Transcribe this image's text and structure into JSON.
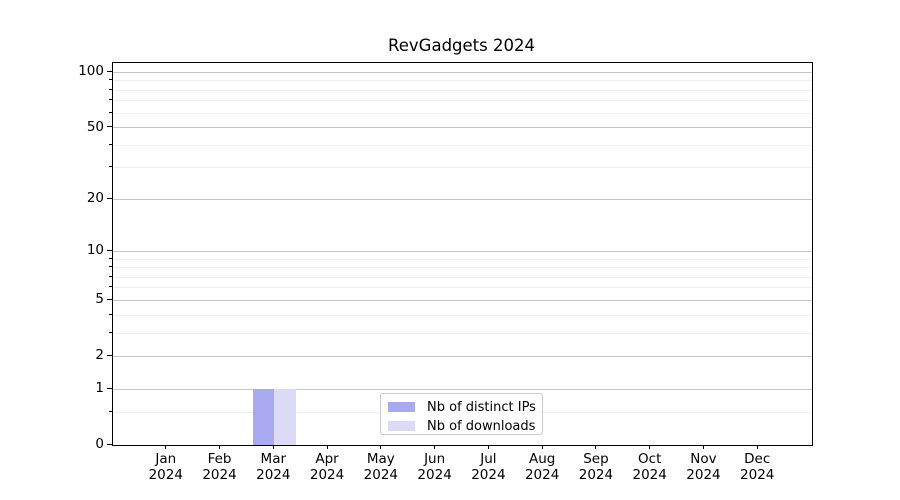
{
  "chart_data": {
    "type": "bar",
    "title": "RevGadgets 2024",
    "categories": [
      "Jan",
      "Feb",
      "Mar",
      "Apr",
      "May",
      "Jun",
      "Jul",
      "Aug",
      "Sep",
      "Oct",
      "Nov",
      "Dec"
    ],
    "category_year": "2024",
    "series": [
      {
        "name": "Nb of distinct IPs",
        "color": "#a9a9f2",
        "values": [
          0,
          0,
          1,
          0,
          0,
          0,
          0,
          0,
          0,
          0,
          0,
          0
        ]
      },
      {
        "name": "Nb of downloads",
        "color": "#dbdbf8",
        "values": [
          0,
          0,
          1,
          0,
          0,
          0,
          0,
          0,
          0,
          0,
          0,
          0
        ]
      }
    ],
    "yscale": "log1p",
    "ylim": [
      0,
      112.6
    ],
    "y_major_ticks": [
      0,
      1,
      2,
      5,
      10,
      20,
      50,
      100
    ],
    "y_minor_ticks": [
      0.5,
      3,
      4,
      6,
      7,
      8,
      9,
      30,
      40,
      60,
      70,
      80,
      90
    ],
    "grid": true,
    "legend_position": "lower center",
    "grid_major_color": "#c6c6c6",
    "grid_minor_color": "#efefef",
    "axis_color": "#000000"
  }
}
